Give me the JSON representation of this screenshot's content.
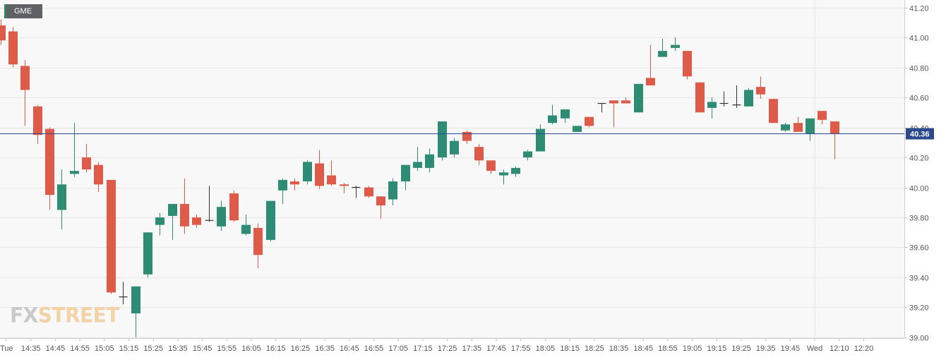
{
  "symbol": "GME",
  "watermark": {
    "part1": "FX",
    "part2": "STREET"
  },
  "colors": {
    "up": "#2e8b74",
    "down": "#de5b49",
    "doji": "#333333",
    "last_price_line": "#2b4a8c",
    "grid": "#e6e6e6",
    "background": "#f8f8f9"
  },
  "chart_data": {
    "type": "candlestick",
    "symbol": "GME",
    "interval_minutes": 5,
    "ylim": [
      39.0,
      41.2
    ],
    "y_ticks": [
      "39.00",
      "39.20",
      "39.40",
      "39.60",
      "39.80",
      "40.00",
      "40.20",
      "40.40",
      "40.60",
      "40.80",
      "41.00",
      "41.20"
    ],
    "x_labels": [
      "Tue",
      "14:35",
      "14:45",
      "14:55",
      "15:05",
      "15:15",
      "15:25",
      "15:35",
      "15:45",
      "15:55",
      "16:05",
      "16:15",
      "16:25",
      "16:35",
      "16:45",
      "16:55",
      "17:05",
      "17:15",
      "17:25",
      "17:35",
      "17:45",
      "17:55",
      "18:05",
      "18:15",
      "18:25",
      "18:35",
      "18:45",
      "18:55",
      "19:05",
      "19:15",
      "19:25",
      "19:35",
      "19:45",
      "Wed",
      "12:10",
      "12:20"
    ],
    "last_price": "40.36",
    "last_price_value": 40.36,
    "candles": [
      {
        "o": 41.08,
        "h": 41.12,
        "l": 40.95,
        "c": 40.98
      },
      {
        "o": 41.04,
        "h": 41.07,
        "l": 40.8,
        "c": 40.82
      },
      {
        "o": 40.81,
        "h": 40.85,
        "l": 40.41,
        "c": 40.65
      },
      {
        "o": 40.54,
        "h": 40.55,
        "l": 40.29,
        "c": 40.35
      },
      {
        "o": 40.39,
        "h": 40.4,
        "l": 39.85,
        "c": 39.95
      },
      {
        "o": 39.85,
        "h": 40.12,
        "l": 39.72,
        "c": 40.02
      },
      {
        "o": 40.09,
        "h": 40.43,
        "l": 40.07,
        "c": 40.11
      },
      {
        "o": 40.2,
        "h": 40.29,
        "l": 40.1,
        "c": 40.12
      },
      {
        "o": 40.15,
        "h": 40.17,
        "l": 39.97,
        "c": 40.02
      },
      {
        "o": 40.05,
        "h": 40.05,
        "l": 39.29,
        "c": 39.3
      },
      {
        "o": 39.27,
        "h": 39.37,
        "l": 39.22,
        "c": 39.27
      },
      {
        "o": 39.16,
        "h": 39.34,
        "l": 39.0,
        "c": 39.34
      },
      {
        "o": 39.42,
        "h": 39.7,
        "l": 39.4,
        "c": 39.7
      },
      {
        "o": 39.75,
        "h": 39.83,
        "l": 39.68,
        "c": 39.8
      },
      {
        "o": 39.81,
        "h": 39.89,
        "l": 39.65,
        "c": 39.89
      },
      {
        "o": 39.89,
        "h": 40.06,
        "l": 39.69,
        "c": 39.74
      },
      {
        "o": 39.8,
        "h": 39.82,
        "l": 39.73,
        "c": 39.75
      },
      {
        "o": 39.78,
        "h": 40.01,
        "l": 39.77,
        "c": 39.78
      },
      {
        "o": 39.74,
        "h": 39.91,
        "l": 39.71,
        "c": 39.87
      },
      {
        "o": 39.96,
        "h": 39.98,
        "l": 39.77,
        "c": 39.78
      },
      {
        "o": 39.69,
        "h": 39.82,
        "l": 39.68,
        "c": 39.75
      },
      {
        "o": 39.73,
        "h": 39.76,
        "l": 39.46,
        "c": 39.55
      },
      {
        "o": 39.65,
        "h": 39.91,
        "l": 39.64,
        "c": 39.91
      },
      {
        "o": 39.98,
        "h": 40.06,
        "l": 39.89,
        "c": 40.05
      },
      {
        "o": 40.04,
        "h": 40.06,
        "l": 39.98,
        "c": 40.02
      },
      {
        "o": 40.04,
        "h": 40.18,
        "l": 40.02,
        "c": 40.17
      },
      {
        "o": 40.16,
        "h": 40.25,
        "l": 39.99,
        "c": 40.01
      },
      {
        "o": 40.08,
        "h": 40.18,
        "l": 40.01,
        "c": 40.02
      },
      {
        "o": 40.02,
        "h": 40.03,
        "l": 39.96,
        "c": 40.01
      },
      {
        "o": 40.0,
        "h": 40.01,
        "l": 39.93,
        "c": 40.0
      },
      {
        "o": 40.0,
        "h": 40.01,
        "l": 39.93,
        "c": 39.94
      },
      {
        "o": 39.94,
        "h": 39.94,
        "l": 39.79,
        "c": 39.88
      },
      {
        "o": 39.92,
        "h": 40.06,
        "l": 39.88,
        "c": 40.04
      },
      {
        "o": 40.04,
        "h": 40.15,
        "l": 39.98,
        "c": 40.15
      },
      {
        "o": 40.13,
        "h": 40.27,
        "l": 40.11,
        "c": 40.17
      },
      {
        "o": 40.13,
        "h": 40.26,
        "l": 40.1,
        "c": 40.22
      },
      {
        "o": 40.2,
        "h": 40.44,
        "l": 40.18,
        "c": 40.44
      },
      {
        "o": 40.22,
        "h": 40.33,
        "l": 40.2,
        "c": 40.31
      },
      {
        "o": 40.37,
        "h": 40.38,
        "l": 40.29,
        "c": 40.31
      },
      {
        "o": 40.27,
        "h": 40.29,
        "l": 40.15,
        "c": 40.18
      },
      {
        "o": 40.18,
        "h": 40.18,
        "l": 40.09,
        "c": 40.11
      },
      {
        "o": 40.08,
        "h": 40.12,
        "l": 40.02,
        "c": 40.1
      },
      {
        "o": 40.09,
        "h": 40.14,
        "l": 40.07,
        "c": 40.13
      },
      {
        "o": 40.2,
        "h": 40.25,
        "l": 40.18,
        "c": 40.24
      },
      {
        "o": 40.24,
        "h": 40.42,
        "l": 40.24,
        "c": 40.39
      },
      {
        "o": 40.43,
        "h": 40.55,
        "l": 40.42,
        "c": 40.48
      },
      {
        "o": 40.46,
        "h": 40.52,
        "l": 40.43,
        "c": 40.52
      },
      {
        "o": 40.37,
        "h": 40.41,
        "l": 40.37,
        "c": 40.41
      },
      {
        "o": 40.47,
        "h": 40.47,
        "l": 40.4,
        "c": 40.41
      },
      {
        "o": 40.56,
        "h": 40.56,
        "l": 40.5,
        "c": 40.56
      },
      {
        "o": 40.58,
        "h": 40.58,
        "l": 40.4,
        "c": 40.56
      },
      {
        "o": 40.58,
        "h": 40.6,
        "l": 40.56,
        "c": 40.56
      },
      {
        "o": 40.5,
        "h": 40.69,
        "l": 40.5,
        "c": 40.69
      },
      {
        "o": 40.73,
        "h": 40.95,
        "l": 40.68,
        "c": 40.68
      },
      {
        "o": 40.87,
        "h": 40.99,
        "l": 40.87,
        "c": 40.91
      },
      {
        "o": 40.93,
        "h": 41.0,
        "l": 40.91,
        "c": 40.95
      },
      {
        "o": 40.91,
        "h": 40.91,
        "l": 40.72,
        "c": 40.74
      },
      {
        "o": 40.7,
        "h": 40.7,
        "l": 40.5,
        "c": 40.5
      },
      {
        "o": 40.53,
        "h": 40.6,
        "l": 40.46,
        "c": 40.57
      },
      {
        "o": 40.56,
        "h": 40.64,
        "l": 40.54,
        "c": 40.56
      },
      {
        "o": 40.55,
        "h": 40.68,
        "l": 40.53,
        "c": 40.55
      },
      {
        "o": 40.54,
        "h": 40.66,
        "l": 40.54,
        "c": 40.65
      },
      {
        "o": 40.67,
        "h": 40.74,
        "l": 40.59,
        "c": 40.62
      },
      {
        "o": 40.59,
        "h": 40.59,
        "l": 40.43,
        "c": 40.43
      },
      {
        "o": 40.38,
        "h": 40.43,
        "l": 40.37,
        "c": 40.42
      },
      {
        "o": 40.43,
        "h": 40.47,
        "l": 40.37,
        "c": 40.37
      },
      {
        "o": 40.36,
        "h": 40.46,
        "l": 40.31,
        "c": 40.46
      },
      {
        "o": 40.51,
        "h": 40.51,
        "l": 40.42,
        "c": 40.45
      },
      {
        "o": 40.44,
        "h": 40.44,
        "l": 40.19,
        "c": 40.36
      }
    ]
  }
}
